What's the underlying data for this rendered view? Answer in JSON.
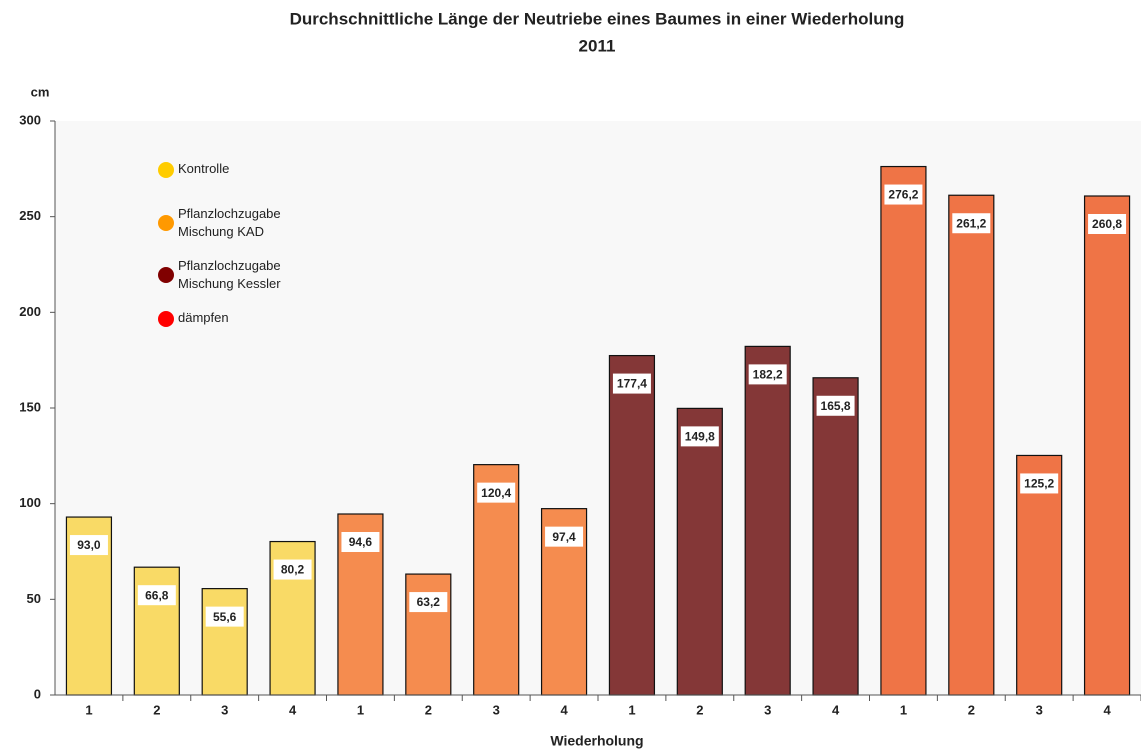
{
  "chart_data": {
    "type": "bar",
    "title": "Durchschnittliche Länge der Neutriebe eines Baumes in einer Wiederholung",
    "subtitle": "2011",
    "y_label": "cm",
    "x_label": "Wiederholung",
    "categories": [
      "1",
      "2",
      "3",
      "4",
      "1",
      "2",
      "3",
      "4",
      "1",
      "2",
      "3",
      "4",
      "1",
      "2",
      "3",
      "4"
    ],
    "values": [
      93.0,
      66.8,
      55.6,
      80.2,
      94.6,
      63.2,
      120.4,
      97.4,
      177.4,
      149.8,
      182.2,
      165.8,
      276.2,
      261.2,
      125.2,
      260.8
    ],
    "value_labels": [
      "93,0",
      "66,8",
      "55,6",
      "80,2",
      "94,6",
      "63,2",
      "120,4",
      "97,4",
      "177,4",
      "149,8",
      "182,2",
      "165,8",
      "276,2",
      "261,2",
      "125,2",
      "260,8"
    ],
    "colors": [
      "#f9da66",
      "#f9da66",
      "#f9da66",
      "#f9da66",
      "#f58c4f",
      "#f58c4f",
      "#f58c4f",
      "#f58c4f",
      "#843737",
      "#843737",
      "#843737",
      "#843737",
      "#ef7446",
      "#ef7446",
      "#ef7446",
      "#ef7446"
    ],
    "legend": [
      {
        "name": "Kontrolle",
        "color": "#ffcc00"
      },
      {
        "name": "Pflanzlochzugabe\nMischung KAD",
        "color": "#ff9900"
      },
      {
        "name": "Pflanzlochzugabe\nMischung Kessler",
        "color": "#800000"
      },
      {
        "name": "dämpfen",
        "color": "#ff0000"
      }
    ],
    "legend_position": "upper left",
    "ylim": [
      0,
      300
    ],
    "yticks": [
      0,
      50,
      100,
      150,
      200,
      250,
      300
    ]
  }
}
